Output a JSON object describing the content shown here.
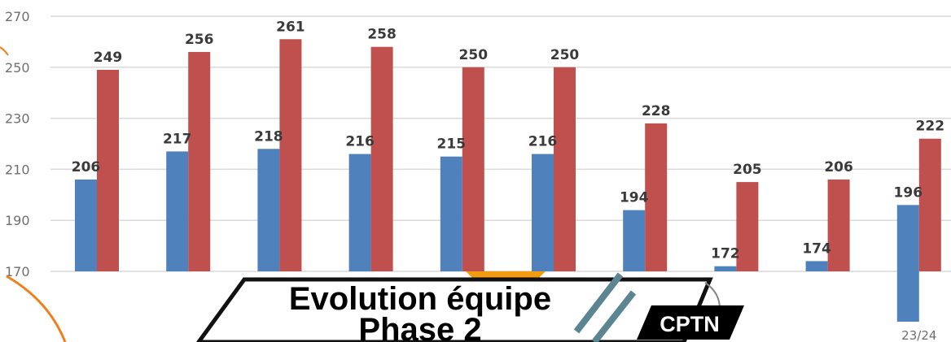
{
  "chart_data": {
    "type": "bar",
    "categories": [
      "",
      "",
      "",
      "",
      "",
      "",
      "",
      "",
      "",
      "23/24"
    ],
    "series": [
      {
        "values": [
          206,
          217,
          218,
          216,
          215,
          216,
          194,
          172,
          174,
          196
        ]
      },
      {
        "values": [
          249,
          256,
          261,
          258,
          250,
          250,
          228,
          205,
          206,
          222
        ]
      }
    ],
    "ylim": [
      170,
      270
    ],
    "yticks": [
      170,
      190,
      210,
      230,
      250,
      270
    ],
    "grid": true,
    "colors": [
      "#4f81bd",
      "#c0504d"
    ]
  },
  "overlay": {
    "title_line1": "Evolution équipe",
    "title_line2": "Phase 2",
    "badge": "CPTN"
  }
}
